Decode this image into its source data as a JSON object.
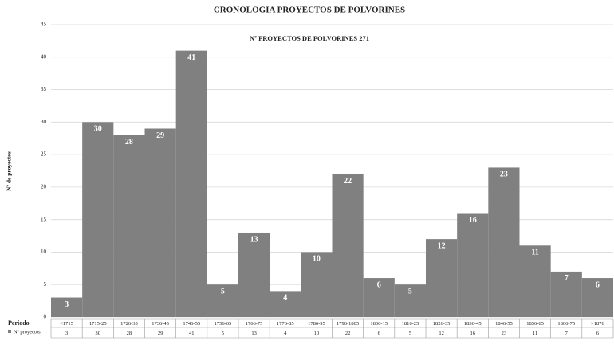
{
  "chart_data": {
    "type": "bar",
    "title": "CRONOLOGIA PROYECTOS DE POLVORINES",
    "subtitle": "Nº PROYECTOS DE POLVORINES 271",
    "y_label": "Nº de proyectos",
    "table_header": "Periodo",
    "categories": [
      "<1715",
      "1715-25",
      "1726-35",
      "1736-45",
      "1746-55",
      "1756-65",
      "1766-75",
      "1776-85",
      "1786-95",
      "1796-1805",
      "1806-15",
      "1816-25",
      "1826-35",
      "1836-45",
      "1846-55",
      "1856-65",
      "1866-75",
      ">1876"
    ],
    "series": [
      {
        "name": "Nº proyectos",
        "color": "#808080",
        "values": [
          3,
          30,
          28,
          29,
          41,
          5,
          13,
          4,
          10,
          22,
          6,
          5,
          12,
          16,
          23,
          11,
          7,
          6
        ]
      }
    ],
    "ylim": [
      0,
      45
    ],
    "yticks": [
      0,
      5,
      10,
      15,
      20,
      25,
      30,
      35,
      40,
      45
    ],
    "grid": true
  }
}
